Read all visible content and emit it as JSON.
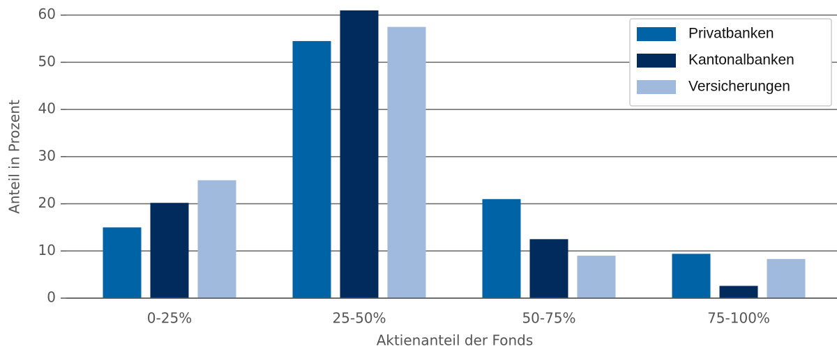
{
  "chart_data": {
    "type": "bar",
    "xlabel": "Aktienanteil der Fonds",
    "ylabel": "Anteil in Prozent",
    "categories": [
      "0-25%",
      "25-50%",
      "50-75%",
      "75-100%"
    ],
    "series": [
      {
        "name": "Privatbanken",
        "color": "#0063a6",
        "values": [
          15,
          54.5,
          21,
          9.4
        ]
      },
      {
        "name": "Kantonalbanken",
        "color": "#002b5c",
        "values": [
          20.2,
          61,
          12.5,
          2.6
        ]
      },
      {
        "name": "Versicherungen",
        "color": "#a0bade",
        "values": [
          25,
          57.5,
          9,
          8.3
        ]
      }
    ],
    "ylim": [
      0,
      63.2
    ],
    "yticks": [
      0,
      10,
      20,
      30,
      40,
      50,
      60
    ],
    "grid": true,
    "legend": "upper right"
  }
}
